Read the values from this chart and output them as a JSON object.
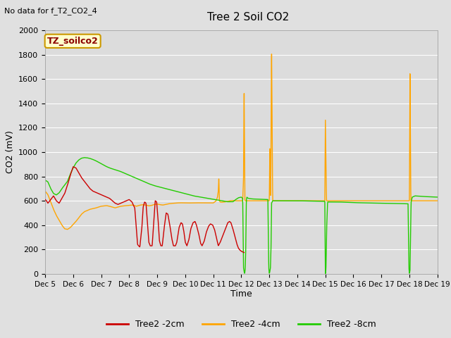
{
  "title": "Tree 2 Soil CO2",
  "no_data_text": "No data for f_T2_CO2_4",
  "ylabel": "CO2 (mV)",
  "xlabel": "Time",
  "ylim": [
    0,
    2000
  ],
  "xlim": [
    0,
    14
  ],
  "fig_bg": "#e0e0e0",
  "plot_bg": "#dcdcdc",
  "grid_color": "#ffffff",
  "tz_label": "TZ_soilco2",
  "legend_entries": [
    "Tree2 -2cm",
    "Tree2 -4cm",
    "Tree2 -8cm"
  ],
  "line_colors": [
    "#cc0000",
    "#ffa500",
    "#22cc00"
  ],
  "xtick_labels": [
    "Dec 5",
    "Dec 6",
    "Dec 7",
    "Dec 8",
    "Dec 9",
    "Dec 10",
    "Dec 11",
    "Dec 12",
    "Dec 13",
    "Dec 14",
    "Dec 15",
    "Dec 16",
    "Dec 17",
    "Dec 18",
    "Dec 19"
  ],
  "xtick_positions": [
    0,
    1,
    2,
    3,
    4,
    5,
    6,
    7,
    8,
    9,
    10,
    11,
    12,
    13,
    14
  ],
  "ytick_positions": [
    0,
    200,
    400,
    600,
    800,
    1000,
    1200,
    1400,
    1600,
    1800,
    2000
  ]
}
